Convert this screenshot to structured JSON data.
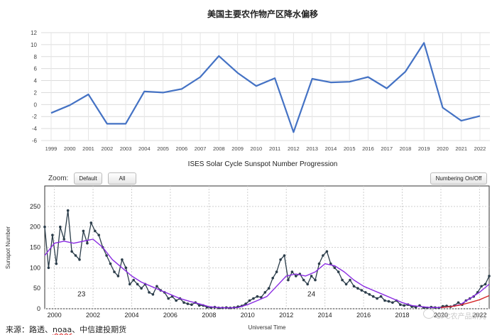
{
  "chart_data": [
    {
      "type": "line",
      "title": "美国主要农作物产区降水偏移",
      "x": [
        1999,
        2000,
        2001,
        2002,
        2003,
        2004,
        2005,
        2006,
        2007,
        2008,
        2009,
        2010,
        2011,
        2012,
        2013,
        2014,
        2015,
        2016,
        2017,
        2018,
        2019,
        2020,
        2021,
        2022
      ],
      "series": [
        {
          "values": [
            -1.4,
            -0.1,
            1.7,
            -3.2,
            -3.2,
            2.2,
            2.0,
            2.6,
            4.6,
            8.1,
            5.3,
            3.1,
            4.4,
            -4.6,
            4.3,
            3.7,
            3.8,
            4.6,
            2.7,
            5.5,
            10.3,
            -0.5,
            -2.7,
            -1.9
          ]
        }
      ],
      "ylim": [
        -6,
        12
      ],
      "yticks": [
        -6,
        -4,
        -2,
        0,
        2,
        4,
        6,
        8,
        10,
        12
      ],
      "grid": true,
      "color": "#4472c4"
    },
    {
      "type": "line",
      "title": "ISES Solar Cycle Sunspot Number Progression",
      "xlabel": "Universal Time",
      "ylabel": "Sunspot Number",
      "xlim": [
        1999.5,
        2022.5
      ],
      "xticks": [
        2000,
        2002,
        2004,
        2006,
        2008,
        2010,
        2012,
        2014,
        2016,
        2018,
        2020,
        2022
      ],
      "ylim": [
        0,
        300
      ],
      "yticks": [
        0,
        50,
        100,
        150,
        200,
        250
      ],
      "grid": true,
      "cycle_labels": [
        {
          "text": "23",
          "x": 2001.4,
          "y": 30
        },
        {
          "text": "24",
          "x": 2013.3,
          "y": 30
        }
      ],
      "series": [
        {
          "style": "monthly",
          "color": "#2b3d4a",
          "x": [
            1999.5,
            1999.7,
            1999.9,
            2000.1,
            2000.3,
            2000.5,
            2000.7,
            2000.9,
            2001.1,
            2001.3,
            2001.5,
            2001.7,
            2001.9,
            2002.1,
            2002.3,
            2002.5,
            2002.7,
            2002.9,
            2003.1,
            2003.3,
            2003.5,
            2003.7,
            2003.9,
            2004.1,
            2004.3,
            2004.5,
            2004.7,
            2004.9,
            2005.1,
            2005.3,
            2005.5,
            2005.7,
            2005.9,
            2006.1,
            2006.3,
            2006.5,
            2006.7,
            2006.9,
            2007.1,
            2007.3,
            2007.5,
            2007.7,
            2007.9,
            2008.1,
            2008.3,
            2008.5,
            2008.7,
            2008.9,
            2009.1,
            2009.3,
            2009.5,
            2009.7,
            2009.9,
            2010.1,
            2010.3,
            2010.5,
            2010.7,
            2010.9,
            2011.1,
            2011.3,
            2011.5,
            2011.7,
            2011.9,
            2012.1,
            2012.3,
            2012.5,
            2012.7,
            2012.9,
            2013.1,
            2013.3,
            2013.5,
            2013.7,
            2013.9,
            2014.1,
            2014.3,
            2014.5,
            2014.7,
            2014.9,
            2015.1,
            2015.3,
            2015.5,
            2015.7,
            2015.9,
            2016.1,
            2016.3,
            2016.5,
            2016.7,
            2016.9,
            2017.1,
            2017.3,
            2017.5,
            2017.7,
            2017.9,
            2018.1,
            2018.3,
            2018.5,
            2018.7,
            2018.9,
            2019.1,
            2019.3,
            2019.5,
            2019.7,
            2019.9,
            2020.1,
            2020.3,
            2020.5,
            2020.7,
            2020.9,
            2021.1,
            2021.3,
            2021.5,
            2021.7,
            2021.9,
            2022.1,
            2022.3,
            2022.5
          ],
          "y": [
            200,
            100,
            180,
            110,
            200,
            170,
            240,
            140,
            130,
            120,
            190,
            160,
            210,
            190,
            180,
            150,
            130,
            110,
            90,
            80,
            120,
            100,
            60,
            70,
            60,
            50,
            60,
            40,
            35,
            55,
            45,
            40,
            25,
            30,
            20,
            25,
            15,
            12,
            10,
            15,
            8,
            8,
            4,
            3,
            4,
            2,
            2,
            3,
            2,
            3,
            5,
            7,
            12,
            20,
            25,
            30,
            28,
            40,
            50,
            75,
            90,
            120,
            130,
            70,
            90,
            80,
            85,
            70,
            60,
            80,
            70,
            110,
            130,
            140,
            110,
            100,
            90,
            70,
            60,
            70,
            55,
            50,
            45,
            40,
            35,
            30,
            25,
            30,
            20,
            18,
            15,
            20,
            10,
            8,
            10,
            5,
            4,
            8,
            3,
            2,
            4,
            3,
            2,
            6,
            7,
            5,
            8,
            15,
            10,
            20,
            25,
            30,
            40,
            55,
            60,
            80
          ]
        },
        {
          "style": "smoothed",
          "color": "#8a2be2",
          "x": [
            1999.5,
            2000.0,
            2000.5,
            2001.0,
            2001.5,
            2002.0,
            2002.5,
            2003.0,
            2003.5,
            2004.0,
            2004.5,
            2005.0,
            2005.5,
            2006.0,
            2006.5,
            2007.0,
            2007.5,
            2008.0,
            2008.5,
            2009.0,
            2009.5,
            2010.0,
            2010.5,
            2011.0,
            2011.5,
            2012.0,
            2012.5,
            2013.0,
            2013.5,
            2014.0,
            2014.5,
            2015.0,
            2015.5,
            2016.0,
            2016.5,
            2017.0,
            2017.5,
            2018.0,
            2018.5,
            2019.0,
            2019.5,
            2020.0,
            2020.5,
            2021.0,
            2021.5,
            2022.0,
            2022.5
          ],
          "y": [
            130,
            160,
            165,
            160,
            165,
            170,
            150,
            120,
            100,
            80,
            65,
            55,
            45,
            35,
            25,
            18,
            12,
            5,
            3,
            2,
            3,
            10,
            20,
            30,
            55,
            80,
            85,
            80,
            90,
            110,
            105,
            90,
            70,
            55,
            45,
            35,
            25,
            15,
            8,
            5,
            3,
            3,
            5,
            10,
            25,
            40,
            60
          ]
        },
        {
          "style": "prediction",
          "color": "#d62728",
          "x": [
            2020.0,
            2020.5,
            2021.0,
            2021.5,
            2022.0,
            2022.5
          ],
          "y": [
            3,
            5,
            9,
            15,
            22,
            32
          ]
        }
      ]
    }
  ],
  "ui": {
    "zoom_label": "Zoom:",
    "btn_default": "Default",
    "btn_all": "All",
    "btn_numbering": "Numbering On/Off",
    "source_prefix": "来源：路透、",
    "source_noaa": "noaa",
    "source_suffix": "、中信建投期货",
    "watermark": "CFC农产品研究"
  }
}
